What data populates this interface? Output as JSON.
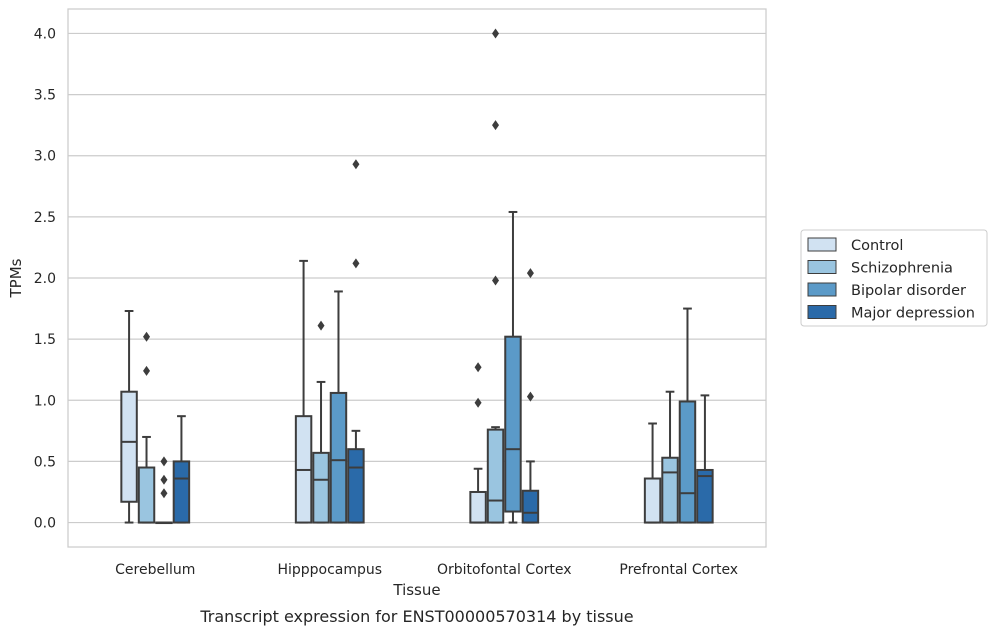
{
  "caption": "Transcript expression for ENST00000570314 by tissue",
  "chart_data": {
    "type": "box",
    "xlabel": "Tissue",
    "ylabel": "TPMs",
    "ylim": [
      -0.2,
      4.2
    ],
    "yticks": [
      "0.0",
      "0.5",
      "1.0",
      "1.5",
      "2.0",
      "2.5",
      "3.0",
      "3.5",
      "4.0"
    ],
    "grid": "horizontal",
    "legend_position": "right",
    "categories": [
      "Cerebellum",
      "Hipppocampus",
      "Orbitofontal Cortex",
      "Prefrontal Cortex"
    ],
    "series": [
      {
        "name": "Control",
        "color": "#d1e2f2",
        "boxes": [
          {
            "whislo": 0.0,
            "q1": 0.17,
            "median": 0.66,
            "q3": 1.07,
            "whishi": 1.73,
            "fliers": []
          },
          {
            "whislo": 0.0,
            "q1": 0.0,
            "median": 0.43,
            "q3": 0.87,
            "whishi": 2.14,
            "fliers": []
          },
          {
            "whislo": 0.0,
            "q1": 0.0,
            "median": 0.0,
            "q3": 0.25,
            "whishi": 0.44,
            "fliers": [
              0.98,
              1.27
            ]
          },
          {
            "whislo": 0.0,
            "q1": 0.0,
            "median": 0.0,
            "q3": 0.36,
            "whishi": 0.81,
            "fliers": []
          }
        ]
      },
      {
        "name": "Schizophrenia",
        "color": "#9ac5e0",
        "boxes": [
          {
            "whislo": 0.0,
            "q1": 0.0,
            "median": 0.0,
            "q3": 0.45,
            "whishi": 0.7,
            "fliers": [
              1.24,
              1.52
            ]
          },
          {
            "whislo": 0.0,
            "q1": 0.0,
            "median": 0.35,
            "q3": 0.57,
            "whishi": 1.15,
            "fliers": [
              1.61
            ]
          },
          {
            "whislo": 0.0,
            "q1": 0.0,
            "median": 0.18,
            "q3": 0.76,
            "whishi": 0.78,
            "fliers": [
              1.98,
              3.25,
              4.0
            ]
          },
          {
            "whislo": 0.0,
            "q1": 0.0,
            "median": 0.41,
            "q3": 0.53,
            "whishi": 1.07,
            "fliers": []
          }
        ]
      },
      {
        "name": "Bipolar disorder",
        "color": "#5b9ac8",
        "boxes": [
          {
            "whislo": 0.0,
            "q1": 0.0,
            "median": 0.0,
            "q3": 0.0,
            "whishi": 0.0,
            "fliers": [
              0.24,
              0.35,
              0.5
            ]
          },
          {
            "whislo": 0.0,
            "q1": 0.0,
            "median": 0.51,
            "q3": 1.06,
            "whishi": 1.89,
            "fliers": []
          },
          {
            "whislo": 0.0,
            "q1": 0.09,
            "median": 0.6,
            "q3": 1.52,
            "whishi": 2.54,
            "fliers": []
          },
          {
            "whislo": 0.0,
            "q1": 0.0,
            "median": 0.24,
            "q3": 0.99,
            "whishi": 1.75,
            "fliers": []
          }
        ]
      },
      {
        "name": "Major depression",
        "color": "#2a6aa9",
        "boxes": [
          {
            "whislo": 0.0,
            "q1": 0.0,
            "median": 0.36,
            "q3": 0.5,
            "whishi": 0.87,
            "fliers": []
          },
          {
            "whislo": 0.0,
            "q1": 0.0,
            "median": 0.45,
            "q3": 0.6,
            "whishi": 0.75,
            "fliers": [
              2.12,
              2.93
            ]
          },
          {
            "whislo": 0.0,
            "q1": 0.0,
            "median": 0.08,
            "q3": 0.26,
            "whishi": 0.5,
            "fliers": [
              1.03,
              2.04
            ]
          },
          {
            "whislo": 0.0,
            "q1": 0.0,
            "median": 0.38,
            "q3": 0.43,
            "whishi": 1.04,
            "fliers": []
          }
        ]
      }
    ]
  }
}
